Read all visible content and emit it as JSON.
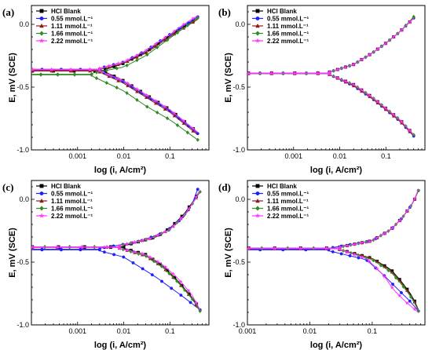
{
  "legend": [
    "HCl Blank",
    "0.55 mmol.L⁻¹",
    "1.11 mmol.L⁻¹",
    "1.66 mmol.L⁻¹",
    "2.22 mmol.L⁻¹"
  ],
  "colors": [
    "#000000",
    "#1f1fff",
    "#8b1a1a",
    "#2e8b22",
    "#ff33ff"
  ],
  "markers": [
    "square",
    "circle",
    "triangle-up",
    "diamond",
    "star"
  ],
  "chart_data": [
    {
      "type": "line",
      "panel_label": "(a)",
      "xlabel": "log (i, A/cm²)",
      "ylabel": "E, mV (SCE)",
      "x_scale": "log",
      "xlim": [
        0.0001,
        0.7
      ],
      "ylim": [
        -1.0,
        0.15
      ],
      "x_ticks": [
        0.001,
        0.01,
        0.1
      ],
      "x_tick_labels": [
        "0.001",
        "0.01",
        "0.1"
      ],
      "y_ticks": [
        0.0,
        -0.5,
        -1.0
      ],
      "y_tick_labels": [
        "0.0",
        "-0.5",
        "-1.0"
      ],
      "series": [
        {
          "name": "HCl Blank",
          "ecorr": -0.37,
          "icorr": 0.004,
          "anodic_x": [
            0.004,
            0.01,
            0.03,
            0.1,
            0.2,
            0.4
          ],
          "anodic_y": [
            -0.36,
            -0.31,
            -0.22,
            -0.09,
            -0.02,
            0.05
          ],
          "cathodic_x": [
            0.004,
            0.01,
            0.03,
            0.1,
            0.2,
            0.4
          ],
          "cathodic_y": [
            -0.38,
            -0.45,
            -0.56,
            -0.68,
            -0.77,
            -0.86
          ]
        },
        {
          "name": "0.55 mmol.L⁻¹",
          "ecorr": -0.36,
          "icorr": 0.003,
          "anodic_x": [
            0.003,
            0.01,
            0.03,
            0.1,
            0.2,
            0.4
          ],
          "anodic_y": [
            -0.35,
            -0.3,
            -0.21,
            -0.08,
            -0.01,
            0.06
          ],
          "cathodic_x": [
            0.003,
            0.01,
            0.03,
            0.1,
            0.2,
            0.4
          ],
          "cathodic_y": [
            -0.37,
            -0.46,
            -0.57,
            -0.69,
            -0.78,
            -0.87
          ]
        },
        {
          "name": "1.11 mmol.L⁻¹",
          "ecorr": -0.37,
          "icorr": 0.003,
          "anodic_x": [
            0.003,
            0.01,
            0.03,
            0.1,
            0.2,
            0.4
          ],
          "anodic_y": [
            -0.36,
            -0.31,
            -0.23,
            -0.1,
            -0.03,
            0.04
          ],
          "cathodic_x": [
            0.003,
            0.01,
            0.03,
            0.1,
            0.2,
            0.4
          ],
          "cathodic_y": [
            -0.38,
            -0.47,
            -0.58,
            -0.7,
            -0.79,
            -0.88
          ]
        },
        {
          "name": "1.66 mmol.L⁻¹",
          "ecorr": -0.4,
          "icorr": 0.002,
          "anodic_x": [
            0.002,
            0.01,
            0.03,
            0.1,
            0.2,
            0.4
          ],
          "anodic_y": [
            -0.39,
            -0.34,
            -0.25,
            -0.11,
            -0.03,
            0.05
          ],
          "cathodic_x": [
            0.002,
            0.01,
            0.03,
            0.1,
            0.2,
            0.4
          ],
          "cathodic_y": [
            -0.41,
            -0.53,
            -0.65,
            -0.76,
            -0.84,
            -0.92
          ]
        },
        {
          "name": "2.22 mmol.L⁻¹",
          "ecorr": -0.36,
          "icorr": 0.003,
          "anodic_x": [
            0.003,
            0.01,
            0.03,
            0.1,
            0.2,
            0.4
          ],
          "anodic_y": [
            -0.35,
            -0.3,
            -0.21,
            -0.08,
            0.0,
            0.07
          ],
          "cathodic_x": [
            0.003,
            0.01,
            0.03,
            0.1,
            0.2,
            0.4
          ],
          "cathodic_y": [
            -0.37,
            -0.45,
            -0.56,
            -0.68,
            -0.77,
            -0.86
          ]
        }
      ]
    },
    {
      "type": "line",
      "panel_label": "(b)",
      "xlabel": "log (i, A/cm²)",
      "ylabel": "E, mV (SCE)",
      "x_scale": "log",
      "xlim": [
        0.0001,
        0.7
      ],
      "ylim": [
        -1.0,
        0.15
      ],
      "x_ticks": [
        0.001,
        0.01,
        0.1
      ],
      "x_tick_labels": [
        "0.001",
        "0.01",
        "0.1"
      ],
      "y_ticks": [
        0.0,
        -0.5,
        -1.0
      ],
      "y_tick_labels": [
        "0.0",
        "-0.5",
        "-1.0"
      ],
      "series": [
        {
          "name": "HCl Blank",
          "ecorr": -0.39,
          "icorr": 0.006,
          "anodic_x": [
            0.006,
            0.02,
            0.05,
            0.1,
            0.2,
            0.4
          ],
          "anodic_y": [
            -0.38,
            -0.32,
            -0.23,
            -0.15,
            -0.06,
            0.05
          ],
          "cathodic_x": [
            0.006,
            0.02,
            0.05,
            0.1,
            0.2,
            0.4
          ],
          "cathodic_y": [
            -0.4,
            -0.48,
            -0.58,
            -0.67,
            -0.76,
            -0.88
          ]
        },
        {
          "name": "0.55 mmol.L⁻¹",
          "ecorr": -0.39,
          "icorr": 0.006,
          "anodic_x": [
            0.006,
            0.02,
            0.05,
            0.1,
            0.2,
            0.4
          ],
          "anodic_y": [
            -0.38,
            -0.32,
            -0.23,
            -0.15,
            -0.06,
            0.05
          ],
          "cathodic_x": [
            0.006,
            0.02,
            0.05,
            0.1,
            0.2,
            0.4
          ],
          "cathodic_y": [
            -0.4,
            -0.49,
            -0.59,
            -0.68,
            -0.77,
            -0.89
          ]
        },
        {
          "name": "1.11 mmol.L⁻¹",
          "ecorr": -0.39,
          "icorr": 0.006,
          "anodic_x": [
            0.006,
            0.02,
            0.05,
            0.1,
            0.2,
            0.4
          ],
          "anodic_y": [
            -0.38,
            -0.32,
            -0.23,
            -0.15,
            -0.06,
            0.05
          ],
          "cathodic_x": [
            0.006,
            0.02,
            0.05,
            0.1,
            0.2,
            0.4
          ],
          "cathodic_y": [
            -0.4,
            -0.49,
            -0.59,
            -0.68,
            -0.77,
            -0.89
          ]
        },
        {
          "name": "1.66 mmol.L⁻¹",
          "ecorr": -0.39,
          "icorr": 0.006,
          "anodic_x": [
            0.006,
            0.02,
            0.05,
            0.1,
            0.2,
            0.4
          ],
          "anodic_y": [
            -0.38,
            -0.32,
            -0.23,
            -0.15,
            -0.06,
            0.06
          ],
          "cathodic_x": [
            0.006,
            0.02,
            0.05,
            0.1,
            0.2,
            0.4
          ],
          "cathodic_y": [
            -0.4,
            -0.48,
            -0.58,
            -0.67,
            -0.76,
            -0.88
          ]
        },
        {
          "name": "2.22 mmol.L⁻¹",
          "ecorr": -0.39,
          "icorr": 0.006,
          "anodic_x": [
            0.006,
            0.02,
            0.05,
            0.1,
            0.2,
            0.4
          ],
          "anodic_y": [
            -0.38,
            -0.32,
            -0.23,
            -0.15,
            -0.06,
            0.05
          ],
          "cathodic_x": [
            0.006,
            0.02,
            0.05,
            0.1,
            0.2,
            0.4
          ],
          "cathodic_y": [
            -0.4,
            -0.48,
            -0.58,
            -0.67,
            -0.76,
            -0.88
          ]
        }
      ]
    },
    {
      "type": "line",
      "panel_label": "(c)",
      "xlabel": "log (i, A/cm²)",
      "ylabel": "E, mV (SCE)",
      "x_scale": "log",
      "xlim": [
        0.0001,
        0.7
      ],
      "ylim": [
        -1.0,
        0.15
      ],
      "x_ticks": [
        0.001,
        0.01,
        0.1
      ],
      "x_tick_labels": [
        "0.001",
        "0.01",
        "0.1"
      ],
      "y_ticks": [
        0.0,
        -0.5,
        -1.0
      ],
      "y_tick_labels": [
        "0.0",
        "-0.5",
        "-1.0"
      ],
      "series": [
        {
          "name": "HCl Blank",
          "ecorr": -0.38,
          "icorr": 0.01,
          "anodic_x": [
            0.01,
            0.05,
            0.1,
            0.2,
            0.3,
            0.45
          ],
          "anodic_y": [
            -0.37,
            -0.3,
            -0.23,
            -0.12,
            -0.03,
            0.07
          ],
          "cathodic_x": [
            0.01,
            0.03,
            0.07,
            0.15,
            0.3,
            0.45
          ],
          "cathodic_y": [
            -0.39,
            -0.44,
            -0.53,
            -0.65,
            -0.78,
            -0.88
          ]
        },
        {
          "name": "0.55 mmol.L⁻¹",
          "ecorr": -0.4,
          "icorr": 0.003,
          "anodic_x": [
            0.003,
            0.02,
            0.08,
            0.2,
            0.3,
            0.4
          ],
          "anodic_y": [
            -0.39,
            -0.34,
            -0.26,
            -0.14,
            -0.04,
            0.08
          ],
          "cathodic_x": [
            0.003,
            0.01,
            0.025,
            0.05,
            0.1,
            0.2,
            0.45
          ],
          "cathodic_y": [
            -0.41,
            -0.46,
            -0.55,
            -0.62,
            -0.7,
            -0.78,
            -0.88
          ]
        },
        {
          "name": "1.11 mmol.L⁻¹",
          "ecorr": -0.38,
          "icorr": 0.008,
          "anodic_x": [
            0.008,
            0.04,
            0.1,
            0.2,
            0.3,
            0.45
          ],
          "anodic_y": [
            -0.37,
            -0.31,
            -0.24,
            -0.13,
            -0.04,
            0.06
          ],
          "cathodic_x": [
            0.008,
            0.03,
            0.07,
            0.15,
            0.3,
            0.45
          ],
          "cathodic_y": [
            -0.39,
            -0.45,
            -0.54,
            -0.66,
            -0.79,
            -0.89
          ]
        },
        {
          "name": "1.66 mmol.L⁻¹",
          "ecorr": -0.38,
          "icorr": 0.008,
          "anodic_x": [
            0.008,
            0.04,
            0.1,
            0.2,
            0.3,
            0.45
          ],
          "anodic_y": [
            -0.37,
            -0.31,
            -0.24,
            -0.13,
            -0.04,
            0.06
          ],
          "cathodic_x": [
            0.008,
            0.03,
            0.07,
            0.15,
            0.3,
            0.45
          ],
          "cathodic_y": [
            -0.39,
            -0.45,
            -0.54,
            -0.66,
            -0.79,
            -0.89
          ]
        },
        {
          "name": "2.22 mmol.L⁻¹",
          "ecorr": -0.38,
          "icorr": 0.008,
          "anodic_x": [
            0.008,
            0.04,
            0.1,
            0.2,
            0.3,
            0.45
          ],
          "anodic_y": [
            -0.37,
            -0.31,
            -0.24,
            -0.13,
            -0.04,
            0.07
          ],
          "cathodic_x": [
            0.008,
            0.03,
            0.07,
            0.15,
            0.3,
            0.45
          ],
          "cathodic_y": [
            -0.39,
            -0.44,
            -0.52,
            -0.63,
            -0.76,
            -0.88
          ]
        }
      ]
    },
    {
      "type": "line",
      "panel_label": "(d)",
      "xlabel": "log (i, A/cm²)",
      "ylabel": "E, mV (SCE)",
      "x_scale": "log",
      "xlim": [
        0.001,
        0.7
      ],
      "ylim": [
        -1.0,
        0.15
      ],
      "x_ticks": [
        0.001,
        0.01,
        0.1
      ],
      "x_tick_labels": [
        "0.001",
        "0.01",
        "0.1"
      ],
      "y_ticks": [
        0.0,
        -0.5,
        -1.0
      ],
      "y_tick_labels": [
        "0.0",
        "-0.5",
        "-1.0"
      ],
      "series": [
        {
          "name": "HCl Blank",
          "ecorr": -0.39,
          "icorr": 0.03,
          "anodic_x": [
            0.03,
            0.1,
            0.2,
            0.3,
            0.45,
            0.55
          ],
          "anodic_y": [
            -0.38,
            -0.33,
            -0.24,
            -0.15,
            -0.03,
            0.07
          ],
          "cathodic_x": [
            0.03,
            0.1,
            0.2,
            0.3,
            0.45,
            0.55
          ],
          "cathodic_y": [
            -0.4,
            -0.47,
            -0.56,
            -0.66,
            -0.78,
            -0.88
          ]
        },
        {
          "name": "0.55 mmol.L⁻¹",
          "ecorr": -0.4,
          "icorr": 0.02,
          "anodic_x": [
            0.02,
            0.1,
            0.2,
            0.3,
            0.45,
            0.55
          ],
          "anodic_y": [
            -0.39,
            -0.33,
            -0.24,
            -0.15,
            -0.03,
            0.07
          ],
          "cathodic_x": [
            0.02,
            0.08,
            0.15,
            0.25,
            0.4,
            0.55
          ],
          "cathodic_y": [
            -0.41,
            -0.48,
            -0.6,
            -0.71,
            -0.81,
            -0.89
          ]
        },
        {
          "name": "1.11 mmol.L⁻¹",
          "ecorr": -0.39,
          "icorr": 0.03,
          "anodic_x": [
            0.03,
            0.1,
            0.2,
            0.3,
            0.45,
            0.55
          ],
          "anodic_y": [
            -0.38,
            -0.33,
            -0.24,
            -0.15,
            -0.03,
            0.07
          ],
          "cathodic_x": [
            0.03,
            0.1,
            0.2,
            0.3,
            0.45,
            0.55
          ],
          "cathodic_y": [
            -0.4,
            -0.47,
            -0.57,
            -0.67,
            -0.79,
            -0.88
          ]
        },
        {
          "name": "1.66 mmol.L⁻¹",
          "ecorr": -0.39,
          "icorr": 0.03,
          "anodic_x": [
            0.03,
            0.1,
            0.2,
            0.3,
            0.45,
            0.55
          ],
          "anodic_y": [
            -0.38,
            -0.33,
            -0.24,
            -0.15,
            -0.03,
            0.07
          ],
          "cathodic_x": [
            0.03,
            0.1,
            0.2,
            0.3,
            0.45,
            0.55
          ],
          "cathodic_y": [
            -0.4,
            -0.48,
            -0.58,
            -0.68,
            -0.8,
            -0.89
          ]
        },
        {
          "name": "2.22 mmol.L⁻¹",
          "ecorr": -0.39,
          "icorr": 0.03,
          "anodic_x": [
            0.03,
            0.1,
            0.2,
            0.3,
            0.45,
            0.55
          ],
          "anodic_y": [
            -0.38,
            -0.33,
            -0.24,
            -0.15,
            -0.03,
            0.08
          ],
          "cathodic_x": [
            0.03,
            0.08,
            0.15,
            0.22,
            0.35,
            0.55
          ],
          "cathodic_y": [
            -0.4,
            -0.47,
            -0.6,
            -0.72,
            -0.82,
            -0.9
          ]
        }
      ]
    }
  ]
}
